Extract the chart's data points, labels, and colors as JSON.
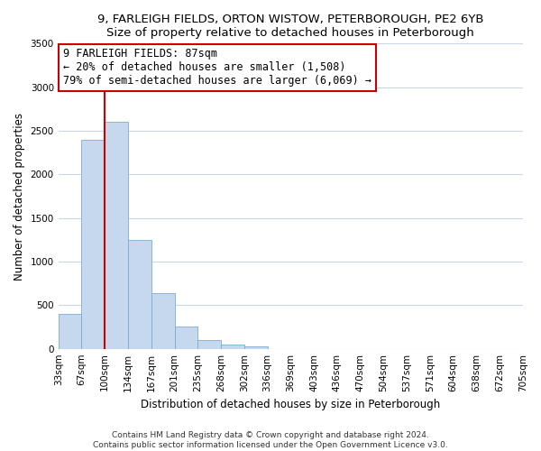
{
  "title": "9, FARLEIGH FIELDS, ORTON WISTOW, PETERBOROUGH, PE2 6YB",
  "subtitle": "Size of property relative to detached houses in Peterborough",
  "xlabel": "Distribution of detached houses by size in Peterborough",
  "ylabel": "Number of detached properties",
  "bar_values": [
    400,
    2400,
    2600,
    1250,
    640,
    260,
    100,
    50,
    30,
    0,
    0,
    0,
    0,
    0,
    0,
    0,
    0,
    0,
    0,
    0
  ],
  "categories": [
    "33sqm",
    "67sqm",
    "100sqm",
    "134sqm",
    "167sqm",
    "201sqm",
    "235sqm",
    "268sqm",
    "302sqm",
    "336sqm",
    "369sqm",
    "403sqm",
    "436sqm",
    "470sqm",
    "504sqm",
    "537sqm",
    "571sqm",
    "604sqm",
    "638sqm",
    "672sqm",
    "705sqm"
  ],
  "bar_color": "#c5d8ee",
  "bar_edge_color": "#7aadd4",
  "vline_color": "#cc0000",
  "ylim": [
    0,
    3500
  ],
  "yticks": [
    0,
    500,
    1000,
    1500,
    2000,
    2500,
    3000,
    3500
  ],
  "annotation_title": "9 FARLEIGH FIELDS: 87sqm",
  "annotation_line1": "← 20% of detached houses are smaller (1,508)",
  "annotation_line2": "79% of semi-detached houses are larger (6,069) →",
  "annotation_box_facecolor": "#ffffff",
  "annotation_box_edgecolor": "#cc0000",
  "footer_line1": "Contains HM Land Registry data © Crown copyright and database right 2024.",
  "footer_line2": "Contains public sector information licensed under the Open Government Licence v3.0.",
  "bg_color": "#ffffff",
  "plot_bg_color": "#ffffff",
  "grid_color": "#c8d8e8",
  "title_fontsize": 9.5,
  "ylabel_fontsize": 8.5,
  "xlabel_fontsize": 8.5,
  "tick_fontsize": 7.5,
  "annotation_fontsize": 8.5,
  "footer_fontsize": 6.5
}
